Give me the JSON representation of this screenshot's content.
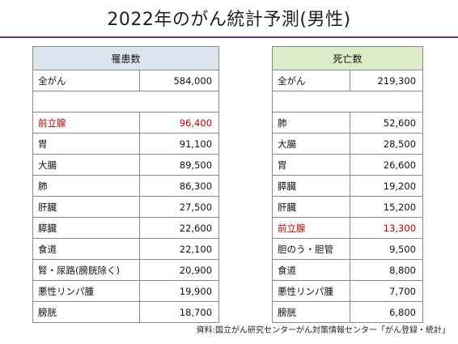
{
  "title": "2022年のがん統計予測(男性)",
  "incidence": {
    "header": "罹患数",
    "total_label": "全がん",
    "total_value": "584,000",
    "rows": [
      {
        "name": "前立腺",
        "value": "96,400"
      },
      {
        "name": "胃",
        "value": "91,100"
      },
      {
        "name": "大腸",
        "value": "89,500"
      },
      {
        "name": "肺",
        "value": "86,300"
      },
      {
        "name": "肝臓",
        "value": "27,500"
      },
      {
        "name": "膵臓",
        "value": "22,600"
      },
      {
        "name": "食道",
        "value": "22,100"
      },
      {
        "name": "腎・尿路(膀胱除く)",
        "value": "20,900"
      },
      {
        "name": "悪性リンパ腫",
        "value": "19,900"
      },
      {
        "name": "膀胱",
        "value": "18,700"
      }
    ]
  },
  "mortality": {
    "header": "死亡数",
    "total_label": "全がん",
    "total_value": "219,300",
    "rows": [
      {
        "name": "肺",
        "value": "52,600"
      },
      {
        "name": "大腸",
        "value": "28,500"
      },
      {
        "name": "胃",
        "value": "26,600"
      },
      {
        "name": "膵臓",
        "value": "19,200"
      },
      {
        "name": "肝臓",
        "value": "15,200"
      },
      {
        "name": "前立腺",
        "value": "13,300"
      },
      {
        "name": "胆のう・胆管",
        "value": "9,500"
      },
      {
        "name": "食道",
        "value": "8,800"
      },
      {
        "name": "悪性リンパ腫",
        "value": "7,700"
      },
      {
        "name": "膀胱",
        "value": "6,800"
      }
    ]
  },
  "source": "資料:国立がん研究センターがん対策情報センター「がん登録・統計」",
  "colors": {
    "incidence_header_bg": "#dde4f0",
    "mortality_header_bg": "#dcebc8",
    "highlight_text": "#c00000",
    "title_rule": "#5a3d78"
  }
}
